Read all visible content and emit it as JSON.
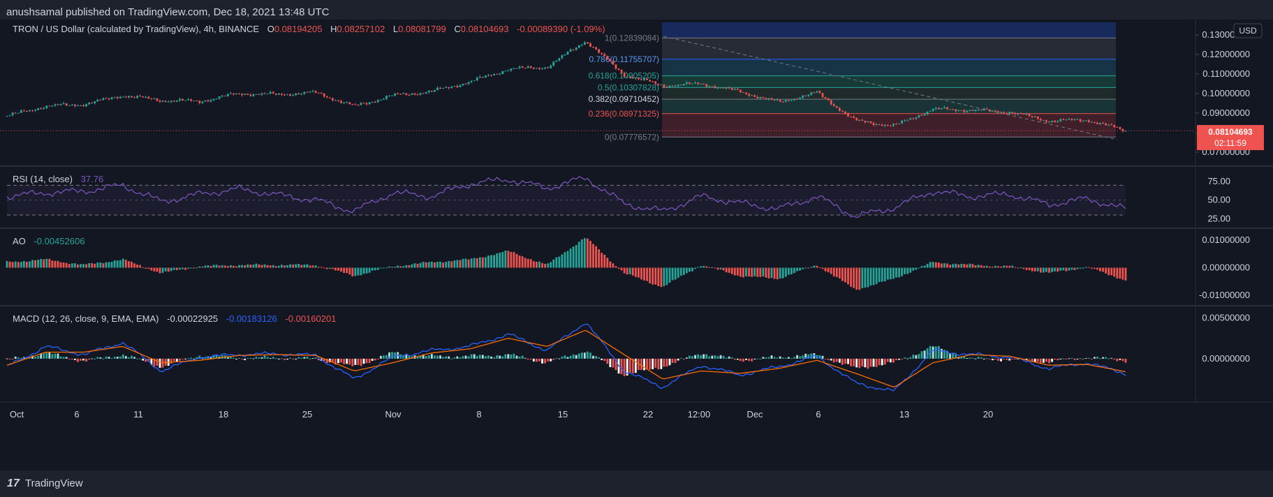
{
  "publisher": "anushsamal published on TradingView.com, Dec 18, 2021 13:48 UTC",
  "brand": "TradingView",
  "colors": {
    "up": "#26a69a",
    "down": "#ef5350",
    "rsi": "#7e57c2",
    "macd": "#2962ff",
    "signal": "#ff6d00"
  },
  "main": {
    "symbol": "TRON / US Dollar (calculated by TradingView), 4h, BINANCE",
    "o_label": "O",
    "o": "0.08194205",
    "h_label": "H",
    "h": "0.08257102",
    "l_label": "L",
    "l": "0.08081799",
    "c_label": "C",
    "c": "0.08104693",
    "chg": "-0.00089390 (-1.09%)",
    "currency": "USD",
    "price_tag": "0.08104693",
    "countdown": "02:11:59",
    "ticks": [
      "0.07000000",
      "0.08000000",
      "0.09000000",
      "0.10000000",
      "0.11000000",
      "0.12000000",
      "0.13000000"
    ],
    "fib": [
      {
        "label": "1(0.12839084)",
        "v": 0.12839084
      },
      {
        "label": "0.786(0.11755707)",
        "v": 0.11755707
      },
      {
        "label": "0.618(0.10905205)",
        "v": 0.10905205
      },
      {
        "label": "0.5(0.10307828)",
        "v": 0.10307828
      },
      {
        "label": "0.382(0.09710452)",
        "v": 0.09710452
      },
      {
        "label": "0.236(0.08971325)",
        "v": 0.08971325
      },
      {
        "label": "0(0.07776572)",
        "v": 0.07776572
      }
    ]
  },
  "rsi": {
    "title": "RSI (14, close)",
    "value": "37.76",
    "ticks": [
      "25.00",
      "50.00",
      "75.00"
    ]
  },
  "ao": {
    "title": "AO",
    "value": "-0.00452606",
    "ticks": [
      "-0.01000000",
      "0.00000000",
      "0.01000000"
    ]
  },
  "macd": {
    "title": "MACD (12, 26, close, 9, EMA, EMA)",
    "hist": "-0.00022925",
    "macd": "-0.00183126",
    "signal": "-0.00160201",
    "ticks": [
      "0.00000000",
      "0.00500000"
    ]
  },
  "xaxis": {
    "labels": [
      "Oct",
      "6",
      "11",
      "18",
      "25",
      "Nov",
      "8",
      "15",
      "22",
      "12:00",
      "Dec",
      "6",
      "13",
      "20"
    ]
  },
  "chart_data": {
    "type": "line",
    "title": "TRON / US Dollar (calculated by TradingView), 4h, BINANCE",
    "x": [
      "Oct 1",
      "Oct 4",
      "Oct 6",
      "Oct 9",
      "Oct 11",
      "Oct 14",
      "Oct 18",
      "Oct 21",
      "Oct 25",
      "Oct 27",
      "Nov 1",
      "Nov 4",
      "Nov 8",
      "Nov 10",
      "Nov 13",
      "Nov 15",
      "Nov 17",
      "Nov 19",
      "Nov 22",
      "Nov 25",
      "Nov 29",
      "Dec 2",
      "Dec 4",
      "Dec 6",
      "Dec 9",
      "Dec 11",
      "Dec 13",
      "Dec 15",
      "Dec 17",
      "Dec 18"
    ],
    "series": [
      {
        "name": "close",
        "values": [
          0.0885,
          0.0935,
          0.0945,
          0.099,
          0.0965,
          0.096,
          0.1,
          0.0995,
          0.1005,
          0.0935,
          0.099,
          0.101,
          0.106,
          0.1125,
          0.1135,
          0.127,
          0.1095,
          0.104,
          0.105,
          0.101,
          0.0955,
          0.1005,
          0.086,
          0.0835,
          0.092,
          0.0915,
          0.0905,
          0.086,
          0.0865,
          0.081
        ]
      },
      {
        "name": "RSI",
        "values": [
          55,
          60,
          62,
          70,
          48,
          58,
          65,
          57,
          50,
          35,
          60,
          55,
          72,
          78,
          66,
          80,
          45,
          35,
          55,
          46,
          38,
          55,
          28,
          40,
          62,
          55,
          58,
          44,
          52,
          37.76
        ]
      },
      {
        "name": "AO",
        "values": [
          0.002,
          0.003,
          0.001,
          0.003,
          -0.002,
          0.0005,
          0.001,
          0.001,
          0.001,
          -0.003,
          0.0005,
          0.002,
          0.003,
          0.006,
          0.001,
          0.011,
          -0.002,
          -0.007,
          0.001,
          -0.003,
          -0.004,
          0.001,
          -0.008,
          -0.004,
          0.002,
          0.001,
          0.0005,
          -0.002,
          0.0002,
          -0.0045
        ]
      },
      {
        "name": "MACD",
        "values": [
          -0.001,
          0.0015,
          0.0005,
          0.002,
          -0.0015,
          0.0002,
          0.0005,
          0.0006,
          0.0004,
          -0.0025,
          0.0002,
          0.001,
          0.0015,
          0.003,
          0.001,
          0.0045,
          -0.0015,
          -0.0035,
          -0.0008,
          -0.002,
          -0.001,
          0.0003,
          -0.003,
          -0.004,
          0.001,
          0.0005,
          0.0002,
          -0.0012,
          -0.0005,
          -0.00183126
        ]
      },
      {
        "name": "Signal",
        "values": [
          -0.0008,
          0.0008,
          0.0008,
          0.0015,
          -0.0005,
          -0.0002,
          0.0004,
          0.0005,
          0.0004,
          -0.0015,
          -0.0005,
          0.0007,
          0.0012,
          0.0025,
          0.0015,
          0.0035,
          0.0005,
          -0.0025,
          -0.0015,
          -0.0018,
          -0.0012,
          -0.0002,
          -0.0018,
          -0.0035,
          -0.0005,
          0.0005,
          0.0003,
          -0.0008,
          -0.0007,
          -0.00160201
        ]
      }
    ],
    "ylim": [
      0.065,
      0.135
    ],
    "rsi_ylim": [
      15,
      90
    ],
    "ao_ylim": [
      -0.0125,
      0.0125
    ],
    "macd_ylim": [
      -0.0048,
      0.0058
    ],
    "grid": true
  }
}
